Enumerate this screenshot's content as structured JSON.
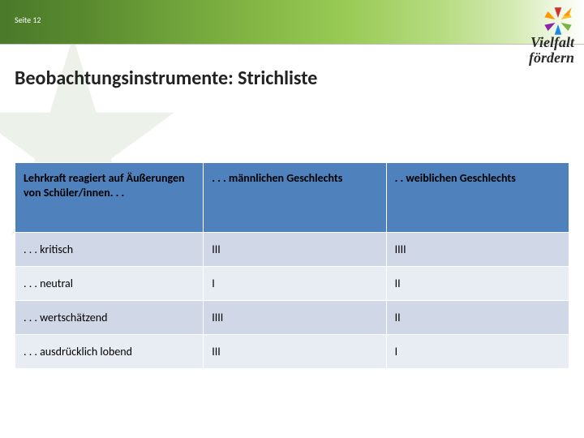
{
  "header": {
    "page_label": "Seite 12",
    "logo_line1": "Vielfalt",
    "logo_line2": "fördern"
  },
  "title": "Beobachtungsinstrumente: Strichliste",
  "table": {
    "header_bg": "#4f81bd",
    "row_bg_odd": "#d0d8e8",
    "row_bg_even": "#e8edf4",
    "columns": [
      "Lehrkraft reagiert auf Äußerungen von Schüler/innen. . .",
      ". . . männlichen Geschlechts",
      ". . weiblichen Geschlechts"
    ],
    "rows": [
      {
        "label": ". . . kritisch",
        "male": "III",
        "female": "IIII"
      },
      {
        "label": ". . . neutral",
        "male": "I",
        "female": "II"
      },
      {
        "label": ". . . wertschätzend",
        "male": "IIII",
        "female": "II"
      },
      {
        "label": ". . . ausdrücklich lobend",
        "male": "III",
        "female": "I"
      }
    ]
  },
  "logo_star_colors": [
    "#d32f2f",
    "#fbc02d",
    "#7cb342",
    "#1e88e5",
    "#8e24aa",
    "#ff9800"
  ]
}
